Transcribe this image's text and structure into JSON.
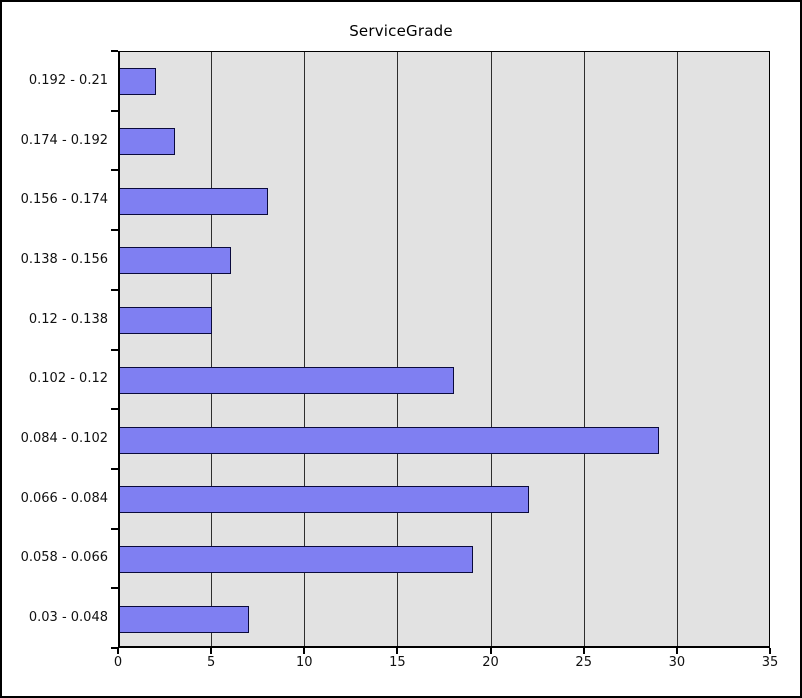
{
  "chart_data": {
    "type": "bar",
    "orientation": "horizontal",
    "title": "ServiceGrade",
    "categories": [
      "0.192 - 0.21",
      "0.174 - 0.192",
      "0.156 - 0.174",
      "0.138 - 0.156",
      "0.12 - 0.138",
      "0.102 - 0.12",
      "0.084 - 0.102",
      "0.066 - 0.084",
      "0.058 - 0.066",
      "0.03 - 0.048"
    ],
    "values": [
      2,
      3,
      8,
      6,
      5,
      18,
      29,
      22,
      19,
      7
    ],
    "xlabel": "",
    "ylabel": "",
    "xlim": [
      0,
      35
    ],
    "xticks": [
      0,
      5,
      10,
      15,
      20,
      25,
      30,
      35
    ],
    "grid": true,
    "legend": false
  },
  "colors": {
    "bar_fill": "#7f7ff2",
    "bar_border": "#0a0a3c",
    "plot_bg": "#e2e2e2",
    "grid_line": "#2e2e2e",
    "axis_line": "#000000",
    "frame_border": "#000000",
    "page_bg": "#ffffff",
    "text": "#111111"
  }
}
